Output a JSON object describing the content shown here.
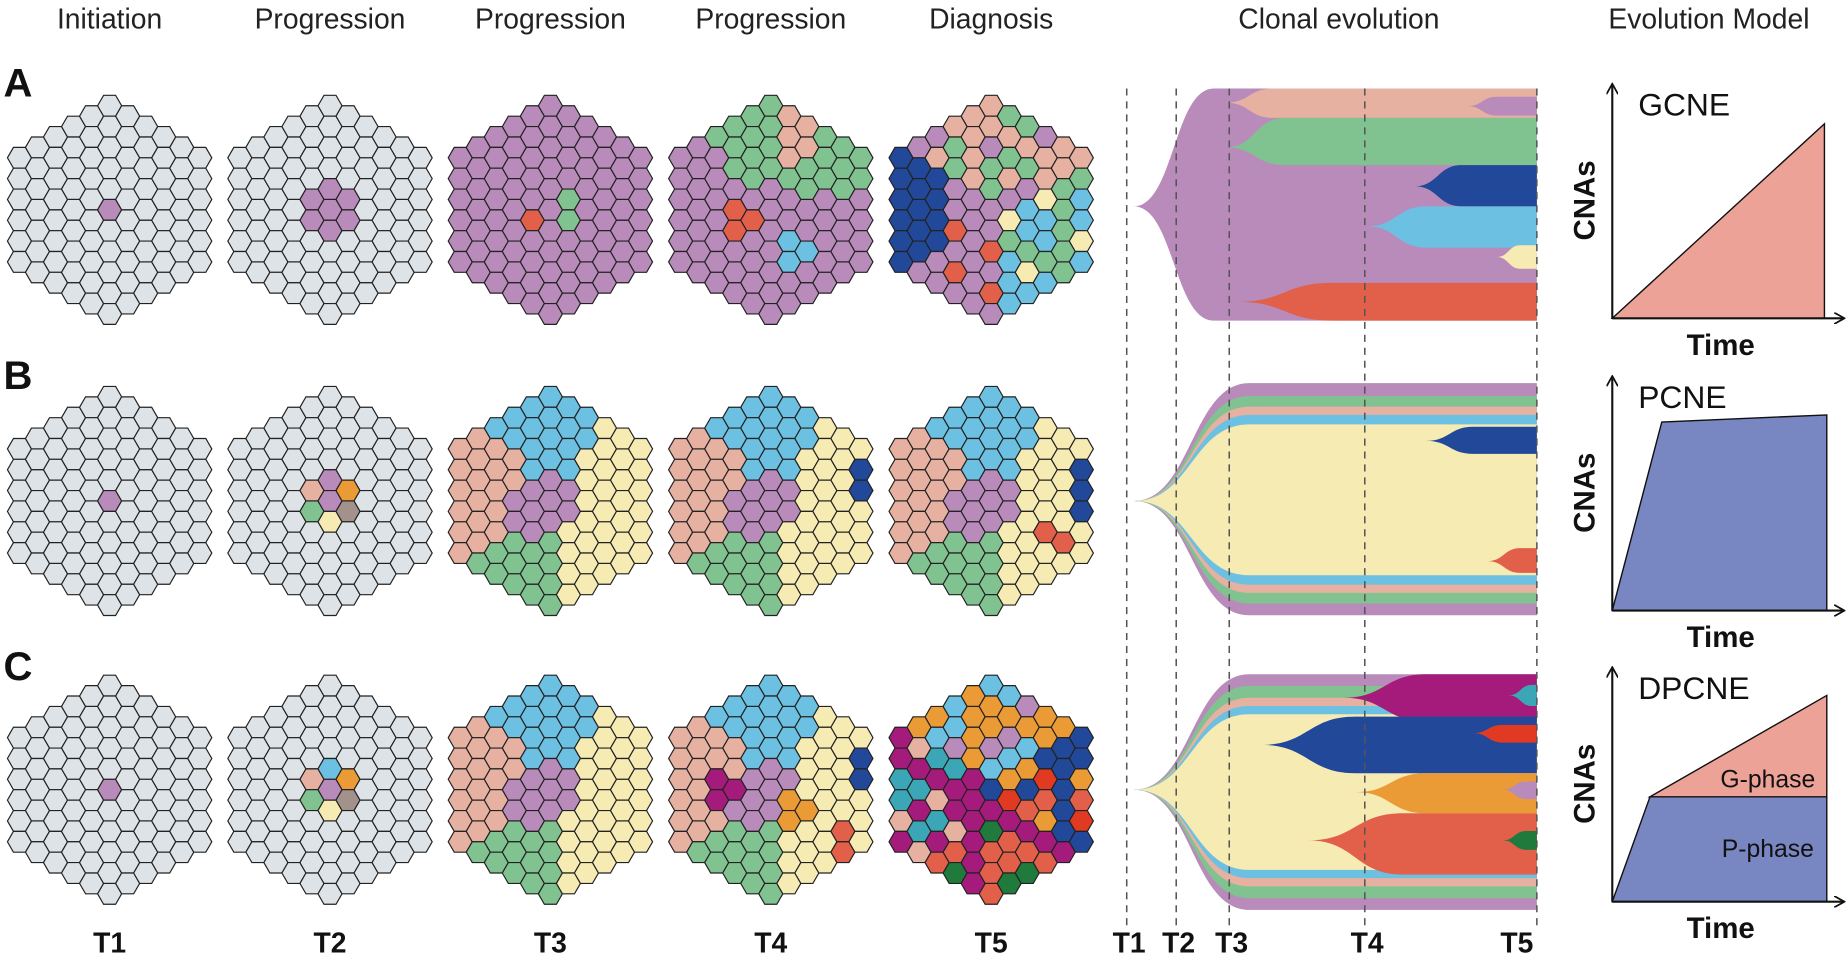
{
  "headers": [
    "Initiation",
    "Progression",
    "Progression",
    "Progression",
    "Diagnosis",
    "Clonal evolution",
    "Evolution Model"
  ],
  "rows": [
    {
      "label": "A",
      "model": "GCNE",
      "y_label": "CNAs",
      "x_label": "Time"
    },
    {
      "label": "B",
      "model": "PCNE",
      "y_label": "CNAs",
      "x_label": "Time"
    },
    {
      "label": "C",
      "model": "DPCNE",
      "y_label": "CNAs",
      "x_label": "Time",
      "phases": [
        "G-phase",
        "P-phase"
      ]
    }
  ],
  "time_labels": [
    "T1",
    "T2",
    "T3",
    "T4",
    "T5"
  ],
  "clonal_time_labels": [
    "T1",
    "T2",
    "T3",
    "T4",
    "T5"
  ]
}
